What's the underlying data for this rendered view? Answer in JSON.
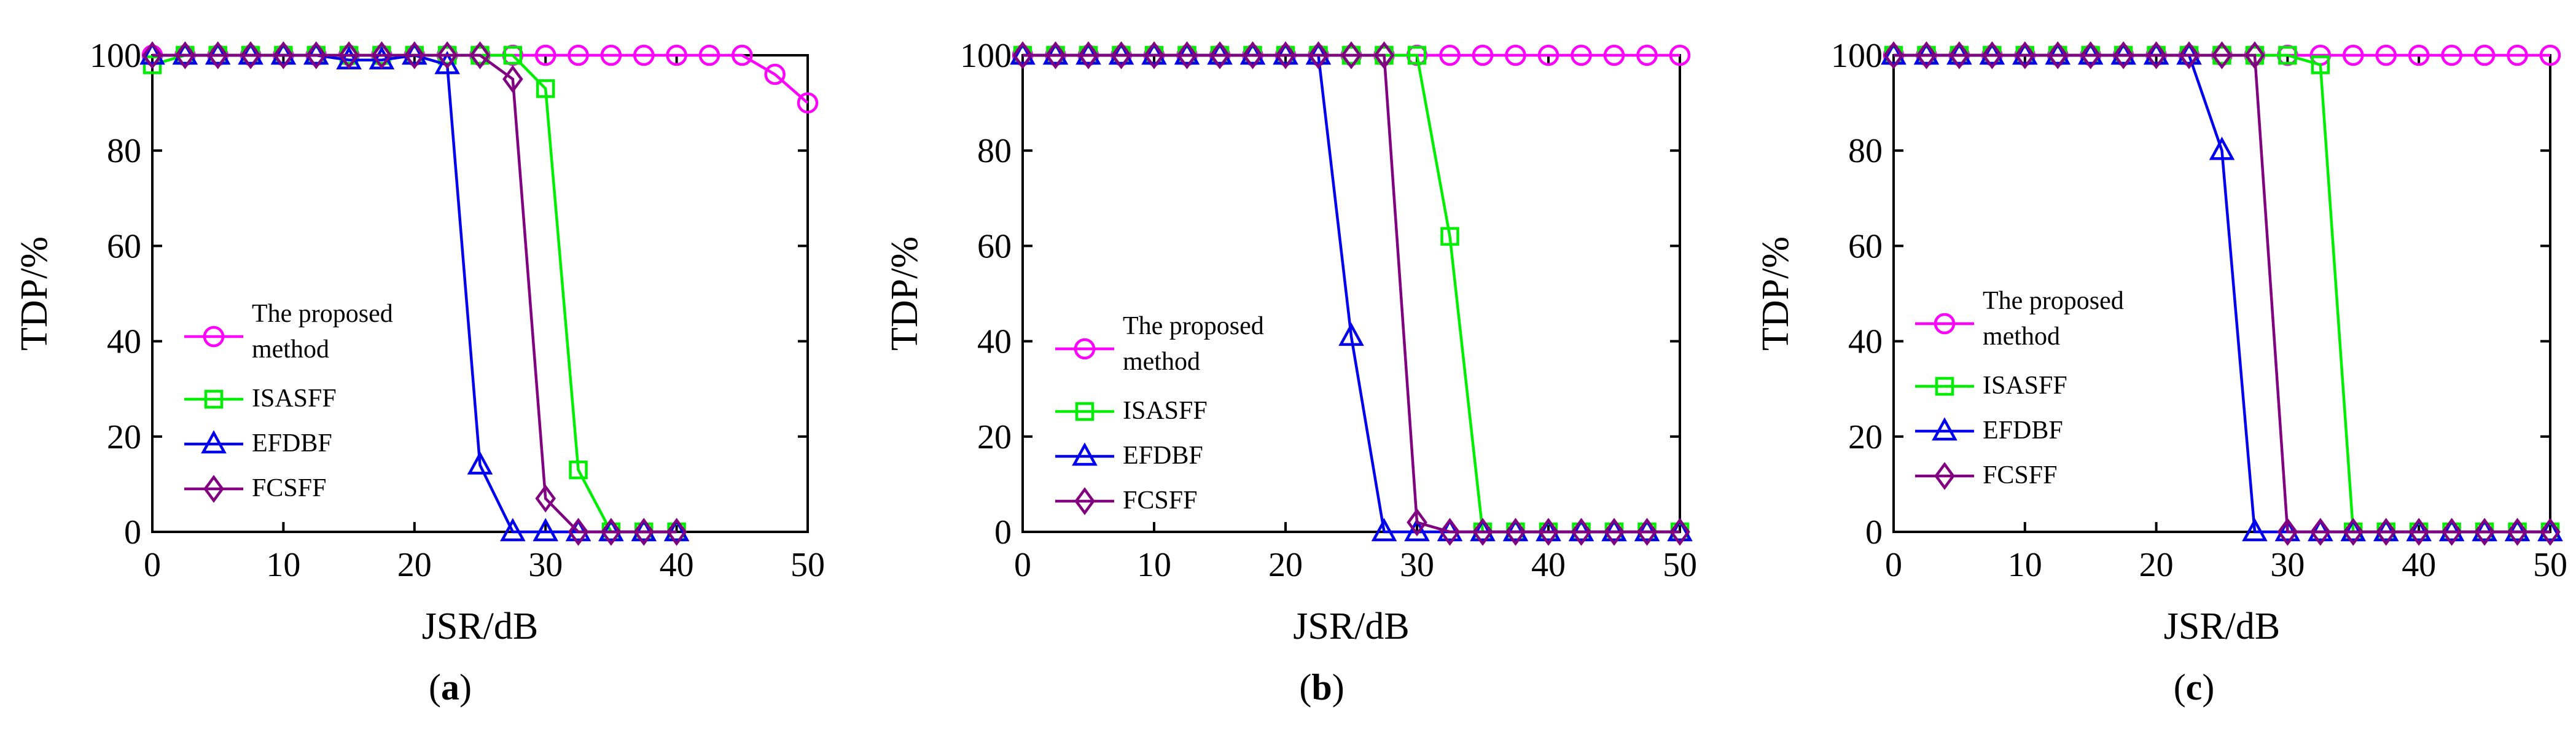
{
  "figure": {
    "panels": [
      {
        "id": "a",
        "caption_open": "(",
        "caption_letter": "a",
        "caption_close": ")"
      },
      {
        "id": "b",
        "caption_open": "(",
        "caption_letter": "b",
        "caption_close": ")"
      },
      {
        "id": "c",
        "caption_open": "(",
        "caption_letter": "c",
        "caption_close": ")"
      }
    ]
  },
  "series_styles": [
    {
      "name": "The proposed method",
      "color": "#ff00ff",
      "marker": "circle"
    },
    {
      "name": "ISASFF",
      "color": "#00ee00",
      "marker": "square"
    },
    {
      "name": "EFDBF",
      "color": "#0000ee",
      "marker": "triangle"
    },
    {
      "name": "FCSFF",
      "color": "#800080",
      "marker": "diamond"
    }
  ],
  "chart_data": [
    {
      "type": "line",
      "panel": "a",
      "xlabel": "JSR/dB",
      "ylabel": "TDP/%",
      "xlim": [
        0,
        50
      ],
      "ylim": [
        0,
        100
      ],
      "xticks": [
        0,
        10,
        20,
        30,
        40,
        50
      ],
      "yticks": [
        0,
        20,
        40,
        60,
        80,
        100
      ],
      "legend_lines": [
        [
          "The proposed",
          "method"
        ],
        [
          "ISASFF"
        ],
        [
          "EFDBF"
        ],
        [
          "FCSFF"
        ]
      ],
      "series": [
        {
          "name": "The proposed method",
          "x": [
            0,
            2.5,
            5,
            7.5,
            10,
            12.5,
            15,
            17.5,
            20,
            22.5,
            25,
            27.5,
            30,
            32.5,
            35,
            37.5,
            40,
            42.5,
            45,
            47.5,
            50
          ],
          "y": [
            100,
            100,
            100,
            100,
            100,
            100,
            100,
            100,
            100,
            100,
            100,
            100,
            100,
            100,
            100,
            100,
            100,
            100,
            100,
            96,
            90
          ]
        },
        {
          "name": "ISASFF",
          "x": [
            0,
            2.5,
            5,
            7.5,
            10,
            12.5,
            15,
            17.5,
            20,
            22.5,
            25,
            27.5,
            30,
            32.5,
            35,
            37.5,
            40
          ],
          "y": [
            98,
            100,
            100,
            100,
            100,
            100,
            100,
            100,
            100,
            100,
            100,
            100,
            93,
            13,
            0,
            0,
            0
          ]
        },
        {
          "name": "EFDBF",
          "x": [
            0,
            2.5,
            5,
            7.5,
            10,
            12.5,
            15,
            17.5,
            20,
            22.5,
            25,
            27.5,
            30,
            32.5,
            35,
            37.5,
            40
          ],
          "y": [
            100,
            100,
            100,
            100,
            100,
            100,
            99,
            99,
            100,
            98,
            14,
            0,
            0,
            0,
            0,
            0,
            0
          ]
        },
        {
          "name": "FCSFF",
          "x": [
            0,
            2.5,
            5,
            7.5,
            10,
            12.5,
            15,
            17.5,
            20,
            22.5,
            25,
            27.5,
            30,
            32.5,
            35,
            37.5,
            40
          ],
          "y": [
            100,
            100,
            100,
            100,
            100,
            100,
            100,
            100,
            100,
            100,
            100,
            95,
            7,
            0,
            0,
            0,
            0
          ]
        }
      ]
    },
    {
      "type": "line",
      "panel": "b",
      "xlabel": "JSR/dB",
      "ylabel": "TDP/%",
      "xlim": [
        0,
        50
      ],
      "ylim": [
        0,
        100
      ],
      "xticks": [
        0,
        10,
        20,
        30,
        40,
        50
      ],
      "yticks": [
        0,
        20,
        40,
        60,
        80,
        100
      ],
      "legend_lines": [
        [
          "The proposed",
          "method"
        ],
        [
          "ISASFF"
        ],
        [
          "EFDBF"
        ],
        [
          "FCSFF"
        ]
      ],
      "series": [
        {
          "name": "The proposed method",
          "x": [
            0,
            2.5,
            5,
            7.5,
            10,
            12.5,
            15,
            17.5,
            20,
            22.5,
            25,
            27.5,
            30,
            32.5,
            35,
            37.5,
            40,
            42.5,
            45,
            47.5,
            50
          ],
          "y": [
            100,
            100,
            100,
            100,
            100,
            100,
            100,
            100,
            100,
            100,
            100,
            100,
            100,
            100,
            100,
            100,
            100,
            100,
            100,
            100,
            100
          ]
        },
        {
          "name": "ISASFF",
          "x": [
            0,
            2.5,
            5,
            7.5,
            10,
            12.5,
            15,
            17.5,
            20,
            22.5,
            25,
            27.5,
            30,
            32.5,
            35,
            37.5,
            40,
            42.5,
            45,
            47.5,
            50
          ],
          "y": [
            100,
            100,
            100,
            100,
            100,
            100,
            100,
            100,
            100,
            100,
            100,
            100,
            100,
            62,
            0,
            0,
            0,
            0,
            0,
            0,
            0
          ]
        },
        {
          "name": "EFDBF",
          "x": [
            0,
            2.5,
            5,
            7.5,
            10,
            12.5,
            15,
            17.5,
            20,
            22.5,
            25,
            27.5,
            30,
            32.5,
            35,
            37.5,
            40,
            42.5,
            45,
            47.5,
            50
          ],
          "y": [
            100,
            100,
            100,
            100,
            100,
            100,
            100,
            100,
            100,
            100,
            41,
            0,
            0,
            0,
            0,
            0,
            0,
            0,
            0,
            0,
            0
          ]
        },
        {
          "name": "FCSFF",
          "x": [
            0,
            2.5,
            5,
            7.5,
            10,
            12.5,
            15,
            17.5,
            20,
            22.5,
            25,
            27.5,
            30,
            32.5,
            35,
            37.5,
            40,
            42.5,
            45,
            47.5,
            50
          ],
          "y": [
            100,
            100,
            100,
            100,
            100,
            100,
            100,
            100,
            100,
            100,
            100,
            100,
            2,
            0,
            0,
            0,
            0,
            0,
            0,
            0,
            0
          ]
        }
      ]
    },
    {
      "type": "line",
      "panel": "c",
      "xlabel": "JSR/dB",
      "ylabel": "TDP/%",
      "xlim": [
        0,
        50
      ],
      "ylim": [
        0,
        100
      ],
      "xticks": [
        0,
        10,
        20,
        30,
        40,
        50
      ],
      "yticks": [
        0,
        20,
        40,
        60,
        80,
        100
      ],
      "legend_lines": [
        [
          "The proposed",
          " method"
        ],
        [
          "ISASFF"
        ],
        [
          "EFDBF"
        ],
        [
          "FCSFF"
        ]
      ],
      "series": [
        {
          "name": "The proposed method",
          "x": [
            0,
            2.5,
            5,
            7.5,
            10,
            12.5,
            15,
            17.5,
            20,
            22.5,
            25,
            27.5,
            30,
            32.5,
            35,
            37.5,
            40,
            42.5,
            45,
            47.5,
            50
          ],
          "y": [
            100,
            100,
            100,
            100,
            100,
            100,
            100,
            100,
            100,
            100,
            100,
            100,
            100,
            100,
            100,
            100,
            100,
            100,
            100,
            100,
            100
          ]
        },
        {
          "name": "ISASFF",
          "x": [
            0,
            2.5,
            5,
            7.5,
            10,
            12.5,
            15,
            17.5,
            20,
            22.5,
            25,
            27.5,
            30,
            32.5,
            35,
            37.5,
            40,
            42.5,
            45,
            47.5,
            50
          ],
          "y": [
            100,
            100,
            100,
            100,
            100,
            100,
            100,
            100,
            100,
            100,
            100,
            100,
            100,
            98,
            0,
            0,
            0,
            0,
            0,
            0,
            0
          ]
        },
        {
          "name": "EFDBF",
          "x": [
            0,
            2.5,
            5,
            7.5,
            10,
            12.5,
            15,
            17.5,
            20,
            22.5,
            25,
            27.5,
            30,
            32.5,
            35,
            37.5,
            40,
            42.5,
            45,
            47.5,
            50
          ],
          "y": [
            100,
            100,
            100,
            100,
            100,
            100,
            100,
            100,
            100,
            100,
            80,
            0,
            0,
            0,
            0,
            0,
            0,
            0,
            0,
            0,
            0
          ]
        },
        {
          "name": "FCSFF",
          "x": [
            0,
            2.5,
            5,
            7.5,
            10,
            12.5,
            15,
            17.5,
            20,
            22.5,
            25,
            27.5,
            30,
            32.5,
            35,
            37.5,
            40,
            42.5,
            45,
            47.5,
            50
          ],
          "y": [
            100,
            100,
            100,
            100,
            100,
            100,
            100,
            100,
            100,
            100,
            100,
            100,
            0,
            0,
            0,
            0,
            0,
            0,
            0,
            0,
            0
          ]
        }
      ]
    }
  ]
}
